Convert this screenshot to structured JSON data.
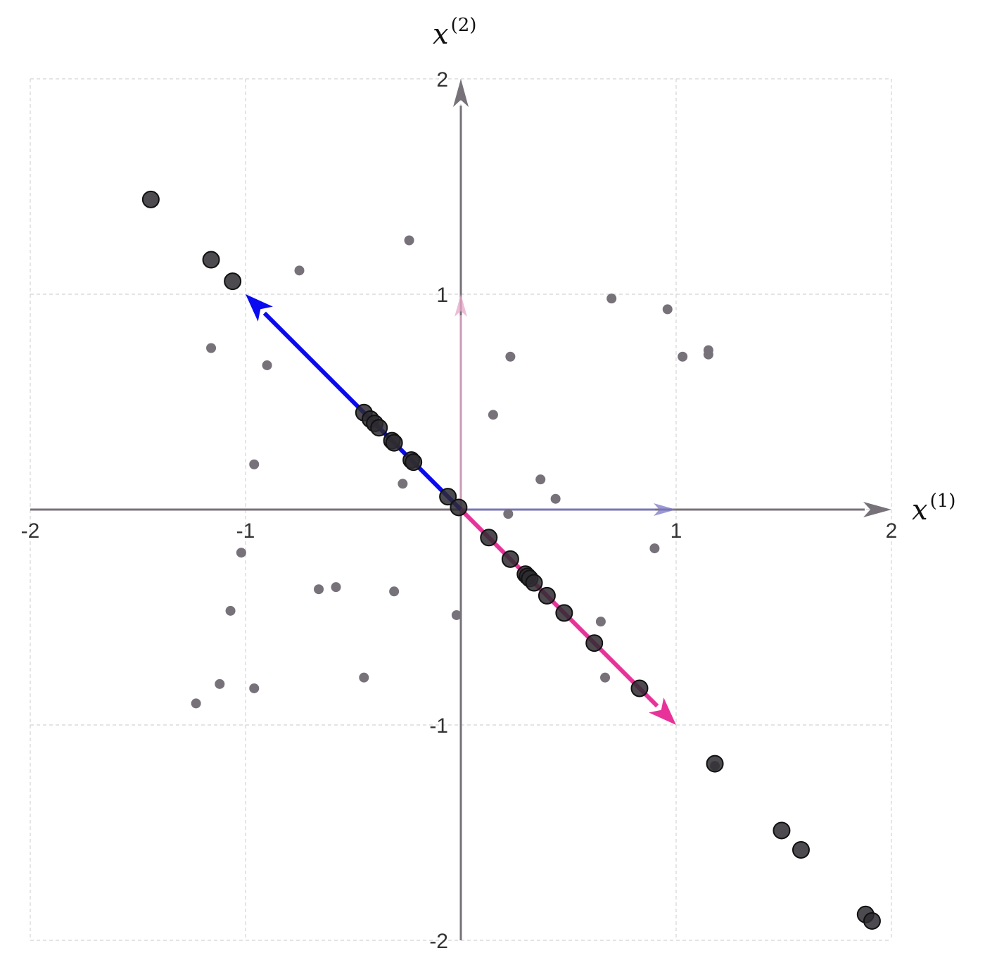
{
  "chart_data": {
    "type": "scatter",
    "xlim": [
      -2,
      2
    ],
    "ylim": [
      -2,
      2
    ],
    "grid": true,
    "xlabel": {
      "base": "x",
      "sup": "(1)"
    },
    "ylabel": {
      "base": "x",
      "sup": "(2)"
    },
    "x_ticks": [
      -2,
      -1,
      1,
      2
    ],
    "y_ticks": [
      2,
      1,
      -1,
      -2
    ],
    "colors": {
      "grid": "#d4d4d4",
      "axis": "#77717a",
      "raw_points": "#77717a",
      "projected_points": "#2e2c30",
      "vector_blue": "#0a0af0",
      "vector_pink": "#e8329a",
      "basis_x": "#7a78c8",
      "basis_y": "#e8a8c8"
    },
    "basis_vectors": [
      {
        "x": 1,
        "y": 0
      },
      {
        "x": 0,
        "y": 1
      }
    ],
    "vectors": [
      {
        "x": -1,
        "y": 1,
        "color": "#0a0af0"
      },
      {
        "x": 1,
        "y": -1,
        "color": "#e8329a"
      }
    ],
    "raw_points": [
      [
        -0.24,
        1.25
      ],
      [
        -0.75,
        1.11
      ],
      [
        -1.16,
        0.75
      ],
      [
        -0.9,
        0.67
      ],
      [
        -0.96,
        0.21
      ],
      [
        -0.27,
        0.12
      ],
      [
        -1.02,
        -0.2
      ],
      [
        -0.66,
        -0.37
      ],
      [
        -0.58,
        -0.36
      ],
      [
        -0.31,
        -0.38
      ],
      [
        -1.07,
        -0.47
      ],
      [
        -0.02,
        -0.49
      ],
      [
        -0.45,
        -0.78
      ],
      [
        -1.12,
        -0.81
      ],
      [
        -0.96,
        -0.83
      ],
      [
        -1.23,
        -0.9
      ],
      [
        0.7,
        0.98
      ],
      [
        0.96,
        0.93
      ],
      [
        0.23,
        0.71
      ],
      [
        1.03,
        0.71
      ],
      [
        1.15,
        0.74
      ],
      [
        1.15,
        0.72
      ],
      [
        0.15,
        0.44
      ],
      [
        0.37,
        0.14
      ],
      [
        0.44,
        0.05
      ],
      [
        0.22,
        -0.02
      ],
      [
        0.9,
        -0.18
      ],
      [
        0.65,
        -0.52
      ],
      [
        0.67,
        -0.78
      ],
      [
        1.18,
        -1.19
      ]
    ],
    "projected_points": [
      [
        -1.44,
        1.44
      ],
      [
        -1.16,
        1.16
      ],
      [
        -1.06,
        1.06
      ],
      [
        -0.45,
        0.45
      ],
      [
        -0.42,
        0.42
      ],
      [
        -0.4,
        0.4
      ],
      [
        -0.38,
        0.38
      ],
      [
        -0.32,
        0.32
      ],
      [
        -0.31,
        0.31
      ],
      [
        -0.23,
        0.23
      ],
      [
        -0.22,
        0.22
      ],
      [
        -0.06,
        0.06
      ],
      [
        -0.01,
        0.01
      ],
      [
        0.13,
        -0.13
      ],
      [
        0.23,
        -0.23
      ],
      [
        0.3,
        -0.3
      ],
      [
        0.31,
        -0.31
      ],
      [
        0.32,
        -0.32
      ],
      [
        0.34,
        -0.34
      ],
      [
        0.4,
        -0.4
      ],
      [
        0.48,
        -0.48
      ],
      [
        0.62,
        -0.62
      ],
      [
        0.83,
        -0.83
      ],
      [
        1.18,
        -1.18
      ],
      [
        1.49,
        -1.49
      ],
      [
        1.58,
        -1.58
      ],
      [
        1.88,
        -1.88
      ],
      [
        1.91,
        -1.91
      ]
    ]
  }
}
